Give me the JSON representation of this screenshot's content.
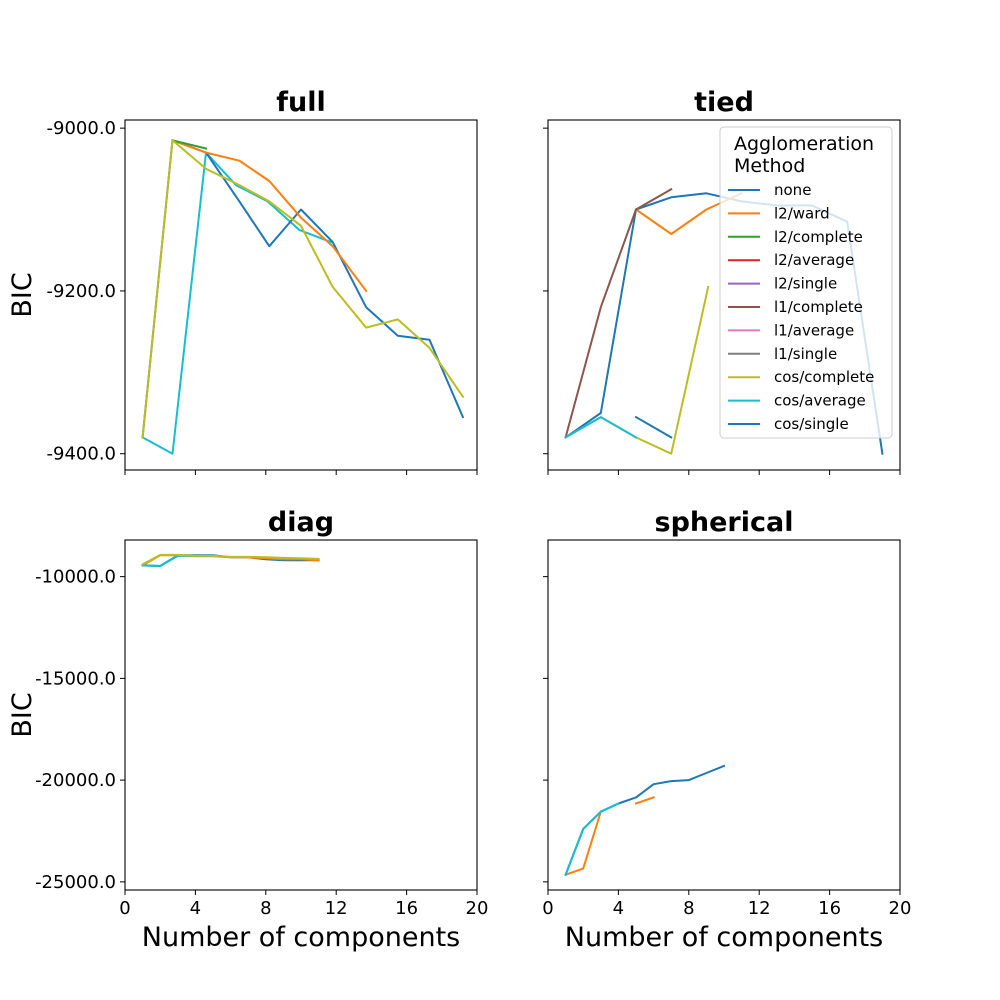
{
  "colors": {
    "none": "#1f77b4",
    "l2/ward": "#ff7f0e",
    "l2/complete": "#2ca02c",
    "l2/average": "#d62728",
    "l2/single": "#9467bd",
    "l1/complete": "#8c564b",
    "l1/average": "#e377c2",
    "l1/single": "#7f7f7f",
    "cos/complete": "#bcbd22",
    "cos/average": "#17becf",
    "cos/single": "#1f77b4"
  },
  "legend": {
    "title_line1": "Agglomeration",
    "title_line2": "Method",
    "entries": [
      "none",
      "l2/ward",
      "l2/complete",
      "l2/average",
      "l2/single",
      "l1/complete",
      "l1/average",
      "l1/single",
      "cos/complete",
      "cos/average",
      "cos/single"
    ],
    "placement": "upper-right of tied panel"
  },
  "chart_data": [
    {
      "type": "line",
      "title": "full",
      "xlabel": "",
      "ylabel": "BIC",
      "xlim": [
        0,
        20
      ],
      "ylim": [
        -9420,
        -8990
      ],
      "xticks": [
        0,
        4,
        8,
        12,
        16,
        20
      ],
      "xticks_labeled": false,
      "yticks": [
        -9000,
        -9200,
        -9400
      ],
      "ytick_labels": [
        "-9000.0",
        "-9200.0",
        "-9400.0"
      ],
      "grid": false,
      "series": [
        {
          "name": "cos/average",
          "x": [
            1,
            2.7,
            4.6,
            6.3,
            8.1,
            9.9,
            11.7
          ],
          "y": [
            -9380,
            -9400,
            -9030,
            -9070,
            -9090,
            -9125,
            -9140
          ]
        },
        {
          "name": "cos/single",
          "x": [
            1,
            2.7,
            4.6,
            6.5,
            8.2,
            10,
            11.8,
            13.7,
            15.5,
            17.3,
            19.2
          ],
          "y": [
            -9380,
            -9015,
            -9030,
            -9090,
            -9145,
            -9100,
            -9140,
            -9220,
            -9255,
            -9260,
            -9355
          ]
        },
        {
          "name": "l2/ward",
          "x": [
            2.7,
            4.6,
            6.5,
            8.2,
            10,
            11.8,
            13.7
          ],
          "y": [
            -9015,
            -9030,
            -9040,
            -9065,
            -9110,
            -9145,
            -9200
          ]
        },
        {
          "name": "l2/complete",
          "x": [
            2.7,
            4.6
          ],
          "y": [
            -9015,
            -9025
          ]
        },
        {
          "name": "cos/complete",
          "x": [
            1,
            2.7,
            4.6,
            6.5,
            8.2,
            10,
            11.8,
            13.7,
            15.5,
            17.3,
            19.2
          ],
          "y": [
            -9380,
            -9015,
            -9050,
            -9070,
            -9090,
            -9120,
            -9195,
            -9245,
            -9235,
            -9270,
            -9330
          ]
        }
      ]
    },
    {
      "type": "line",
      "title": "tied",
      "xlabel": "",
      "ylabel": "",
      "xlim": [
        0,
        20
      ],
      "ylim": [
        -9420,
        -8990
      ],
      "xticks": [
        0,
        4,
        8,
        12,
        16,
        20
      ],
      "xticks_labeled": false,
      "yticks": [
        -9000,
        -9200,
        -9400
      ],
      "ytick_labels": [
        "",
        "",
        ""
      ],
      "grid": false,
      "series": [
        {
          "name": "none",
          "x": [
            1,
            3,
            5,
            7,
            9,
            11,
            13,
            15,
            17,
            19
          ],
          "y": [
            -9380,
            -9350,
            -9100,
            -9085,
            -9080,
            -9090,
            -9095,
            -9095,
            -9115,
            -9400
          ]
        },
        {
          "name": "l2/ward",
          "x": [
            5,
            7,
            9,
            11
          ],
          "y": [
            -9100,
            -9130,
            -9100,
            -9080
          ]
        },
        {
          "name": "l1/complete",
          "x": [
            1,
            3,
            5,
            7
          ],
          "y": [
            -9380,
            -9220,
            -9100,
            -9075
          ]
        },
        {
          "name": "cos/complete",
          "x": [
            1,
            3,
            5,
            7,
            9.1
          ],
          "y": [
            -9380,
            -9355,
            -9380,
            -9400,
            -9195
          ]
        },
        {
          "name": "cos/average",
          "x": [
            1,
            3,
            5
          ],
          "y": [
            -9380,
            -9355,
            -9380
          ]
        },
        {
          "name": "cos/single",
          "x": [
            5,
            7
          ],
          "y": [
            -9355,
            -9380
          ]
        }
      ]
    },
    {
      "type": "line",
      "title": "diag",
      "xlabel": "Number of components",
      "ylabel": "BIC",
      "xlim": [
        0,
        20
      ],
      "ylim": [
        -25400,
        -8200
      ],
      "xticks": [
        0,
        4,
        8,
        12,
        16,
        20
      ],
      "xtick_labels": [
        "0",
        "4",
        "8",
        "12",
        "16",
        "20"
      ],
      "yticks": [
        -10000,
        -15000,
        -20000,
        -25000
      ],
      "ytick_labels": [
        "-10000.0",
        "-15000.0",
        "-20000.0",
        "-25000.0"
      ],
      "grid": false,
      "series": [
        {
          "name": "none",
          "x": [
            1,
            2,
            3,
            4,
            5,
            6,
            7,
            8,
            9,
            10,
            11
          ],
          "y": [
            -9450,
            -9480,
            -8950,
            -8950,
            -8950,
            -9050,
            -9050,
            -9150,
            -9200,
            -9200,
            -9200
          ]
        },
        {
          "name": "l2/ward",
          "x": [
            1,
            2,
            3,
            4,
            5,
            6,
            7,
            8,
            9,
            10,
            11
          ],
          "y": [
            -9450,
            -8950,
            -8950,
            -9000,
            -9000,
            -9050,
            -9050,
            -9100,
            -9150,
            -9150,
            -9200
          ]
        },
        {
          "name": "cos/average",
          "x": [
            1,
            2,
            3,
            4,
            5
          ],
          "y": [
            -9450,
            -9480,
            -8980,
            -8980,
            -8980
          ]
        },
        {
          "name": "cos/complete",
          "x": [
            1,
            2,
            3,
            4,
            5,
            6,
            7,
            8,
            9,
            10,
            11
          ],
          "y": [
            -9400,
            -8930,
            -8930,
            -8980,
            -8980,
            -9030,
            -9030,
            -9050,
            -9080,
            -9100,
            -9130
          ]
        }
      ]
    },
    {
      "type": "line",
      "title": "spherical",
      "xlabel": "Number of components",
      "ylabel": "",
      "xlim": [
        0,
        20
      ],
      "ylim": [
        -25400,
        -8200
      ],
      "xticks": [
        0,
        4,
        8,
        12,
        16,
        20
      ],
      "xtick_labels": [
        "0",
        "4",
        "8",
        "12",
        "16",
        "20"
      ],
      "yticks": [
        -10000,
        -15000,
        -20000,
        -25000
      ],
      "ytick_labels": [
        "",
        "",
        "",
        ""
      ],
      "grid": false,
      "series": [
        {
          "name": "l2/ward",
          "x": [
            1,
            2,
            3
          ],
          "y": [
            -24650,
            -24350,
            -21550
          ]
        },
        {
          "name": "l2/ward",
          "x": [
            5,
            6
          ],
          "y": [
            -21150,
            -20850
          ]
        },
        {
          "name": "none",
          "x": [
            1,
            2,
            3,
            4,
            5,
            6,
            7,
            8,
            9,
            10
          ],
          "y": [
            -24650,
            -22400,
            -21550,
            -21150,
            -20850,
            -20200,
            -20050,
            -20000,
            -19650,
            -19300
          ]
        },
        {
          "name": "cos/average",
          "x": [
            1,
            2,
            3,
            4
          ],
          "y": [
            -24650,
            -22400,
            -21550,
            -21150
          ]
        }
      ]
    }
  ]
}
